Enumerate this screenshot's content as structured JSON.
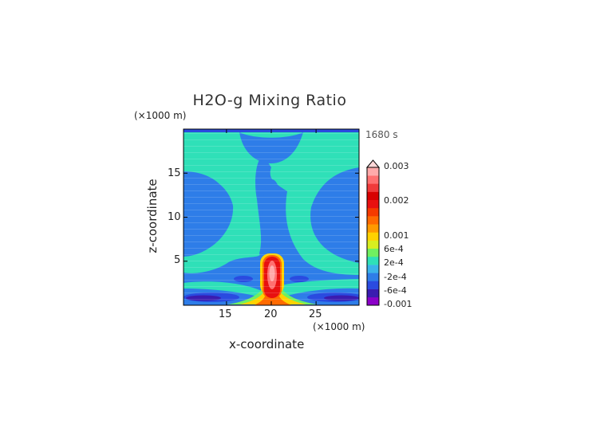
{
  "chart_data": {
    "type": "heatmap",
    "title": "H2O-g Mixing Ratio",
    "xlabel": "x-coordinate",
    "ylabel": "z-coordinate",
    "x_unit": "(×1000 m)",
    "y_unit": "(×1000 m)",
    "time_label": "1680 s",
    "xlim": [
      10.2,
      29.8
    ],
    "ylim": [
      0,
      20
    ],
    "x_ticks": [
      "15",
      "20",
      "25"
    ],
    "y_ticks": [
      "5",
      "10",
      "15"
    ],
    "colorbar": {
      "labels": [
        "0.003",
        "0.002",
        "0.001",
        "6e-4",
        "2e-4",
        "-2e-4",
        "-6e-4",
        "-0.001"
      ],
      "colors": [
        "#8b00c8",
        "#3a1cb0",
        "#2a4be0",
        "#2e7de8",
        "#3bb3ea",
        "#2fe0b8",
        "#70f060",
        "#d8ee20",
        "#ffd200",
        "#ff9a00",
        "#ff6a00",
        "#f53a00",
        "#e81010",
        "#d80000",
        "#f03a3a",
        "#ff7070",
        "#ffaaaa"
      ],
      "extend_top": true
    },
    "features": [
      {
        "name": "central plume",
        "x": 20,
        "z_range": [
          0,
          6
        ],
        "level": "0.002-0.003"
      },
      {
        "name": "upper lobe",
        "x": 20,
        "z_range": [
          8,
          14.5
        ],
        "level": "-2e-4"
      },
      {
        "name": "surface trough left",
        "x": 12,
        "z": 1,
        "level": "-0.001"
      },
      {
        "name": "surface trough right",
        "x": 28,
        "z": 1,
        "level": "-0.001"
      }
    ]
  }
}
